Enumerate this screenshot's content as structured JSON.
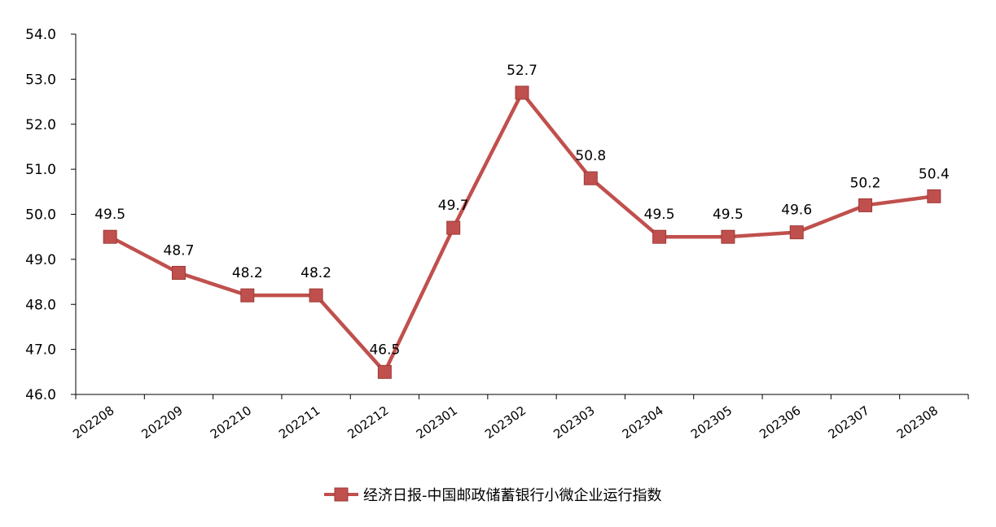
{
  "chart_data": {
    "type": "line",
    "categories": [
      "202208",
      "202209",
      "202210",
      "202211",
      "202212",
      "202301",
      "202302",
      "202303",
      "202304",
      "202305",
      "202306",
      "202307",
      "202308"
    ],
    "series": [
      {
        "name": "经济日报-中国邮政储蓄银行小微企业运行指数",
        "values": [
          49.5,
          48.7,
          48.2,
          48.2,
          46.5,
          49.7,
          52.7,
          50.8,
          49.5,
          49.5,
          49.6,
          50.2,
          50.4
        ],
        "color": "#C0504D"
      }
    ],
    "ylim": [
      46.0,
      54.0
    ],
    "yticks": [
      "46.0",
      "47.0",
      "48.0",
      "49.0",
      "50.0",
      "51.0",
      "52.0",
      "53.0",
      "54.0"
    ],
    "data_labels": [
      "49.5",
      "48.7",
      "48.2",
      "48.2",
      "46.5",
      "49.7",
      "52.7",
      "50.8",
      "49.5",
      "49.5",
      "49.6",
      "50.2",
      "50.4"
    ],
    "grid": false,
    "legend": "bottom",
    "title": "",
    "xlabel": "",
    "ylabel": ""
  }
}
